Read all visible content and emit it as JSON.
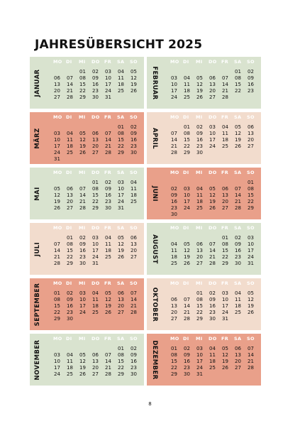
{
  "title": "JAHRESÜBERSICHT 2025",
  "page_number": "8",
  "colors": {
    "green": "#d9e3cf",
    "beige": "#f2dccd",
    "salmon": "#e9a08a"
  },
  "weekdays": [
    "MO",
    "DI",
    "MI",
    "DO",
    "FR",
    "SA",
    "SO"
  ],
  "months": [
    {
      "name": "JANUAR",
      "color": "green",
      "rows": [
        [
          "",
          "",
          "01",
          "02",
          "03",
          "04",
          "05"
        ],
        [
          "06",
          "07",
          "08",
          "09",
          "10",
          "11",
          "12"
        ],
        [
          "13",
          "14",
          "15",
          "16",
          "17",
          "18",
          "19"
        ],
        [
          "20",
          "21",
          "22",
          "23",
          "24",
          "25",
          "26"
        ],
        [
          "27",
          "28",
          "29",
          "30",
          "31",
          "",
          ""
        ]
      ]
    },
    {
      "name": "FEBRUAR",
      "color": "green",
      "rows": [
        [
          "",
          "",
          "",
          "",
          "",
          "01",
          "02"
        ],
        [
          "03",
          "04",
          "05",
          "06",
          "07",
          "08",
          "09"
        ],
        [
          "10",
          "11",
          "12",
          "13",
          "14",
          "15",
          "16"
        ],
        [
          "17",
          "18",
          "19",
          "20",
          "21",
          "22",
          "23"
        ],
        [
          "24",
          "25",
          "26",
          "27",
          "28",
          "",
          ""
        ]
      ]
    },
    {
      "name": "MÄRZ",
      "color": "salmon",
      "rows": [
        [
          "",
          "",
          "",
          "",
          "",
          "01",
          "02"
        ],
        [
          "03",
          "04",
          "05",
          "06",
          "07",
          "08",
          "09"
        ],
        [
          "10",
          "11",
          "12",
          "13",
          "14",
          "15",
          "16"
        ],
        [
          "17",
          "18",
          "19",
          "20",
          "21",
          "22",
          "23"
        ],
        [
          "24",
          "25",
          "26",
          "27",
          "28",
          "29",
          "30"
        ],
        [
          "31",
          "",
          "",
          "",
          "",
          "",
          ""
        ]
      ]
    },
    {
      "name": "APRIL",
      "color": "beige",
      "rows": [
        [
          "",
          "01",
          "02",
          "03",
          "04",
          "05",
          "06"
        ],
        [
          "07",
          "08",
          "09",
          "10",
          "11",
          "12",
          "13"
        ],
        [
          "14",
          "15",
          "16",
          "17",
          "18",
          "19",
          "20"
        ],
        [
          "21",
          "22",
          "23",
          "24",
          "25",
          "26",
          "27"
        ],
        [
          "28",
          "29",
          "30",
          "",
          "",
          "",
          ""
        ]
      ]
    },
    {
      "name": "MAI",
      "color": "green",
      "rows": [
        [
          "",
          "",
          "",
          "01",
          "02",
          "03",
          "04"
        ],
        [
          "05",
          "06",
          "07",
          "08",
          "09",
          "10",
          "11"
        ],
        [
          "12",
          "13",
          "14",
          "15",
          "16",
          "17",
          "18"
        ],
        [
          "19",
          "20",
          "21",
          "22",
          "23",
          "24",
          "25"
        ],
        [
          "26",
          "27",
          "28",
          "29",
          "30",
          "31",
          ""
        ]
      ]
    },
    {
      "name": "JUNI",
      "color": "salmon",
      "rows": [
        [
          "",
          "",
          "",
          "",
          "",
          "",
          "01"
        ],
        [
          "02",
          "03",
          "04",
          "05",
          "06",
          "07",
          "08"
        ],
        [
          "09",
          "10",
          "11",
          "12",
          "13",
          "14",
          "15"
        ],
        [
          "16",
          "17",
          "18",
          "19",
          "20",
          "21",
          "22"
        ],
        [
          "23",
          "24",
          "25",
          "26",
          "27",
          "28",
          "29"
        ],
        [
          "30",
          "",
          "",
          "",
          "",
          "",
          ""
        ]
      ]
    },
    {
      "name": "JULI",
      "color": "beige",
      "rows": [
        [
          "",
          "01",
          "02",
          "03",
          "04",
          "05",
          "06"
        ],
        [
          "07",
          "08",
          "09",
          "10",
          "11",
          "12",
          "13"
        ],
        [
          "14",
          "15",
          "16",
          "17",
          "18",
          "19",
          "20"
        ],
        [
          "21",
          "22",
          "23",
          "24",
          "25",
          "26",
          "27"
        ],
        [
          "28",
          "29",
          "30",
          "31",
          "",
          "",
          ""
        ]
      ]
    },
    {
      "name": "AUGUST",
      "color": "green",
      "rows": [
        [
          "",
          "",
          "",
          "",
          "01",
          "02",
          "03"
        ],
        [
          "04",
          "05",
          "06",
          "07",
          "08",
          "09",
          "10"
        ],
        [
          "11",
          "12",
          "13",
          "14",
          "15",
          "16",
          "17"
        ],
        [
          "18",
          "19",
          "20",
          "21",
          "22",
          "23",
          "24"
        ],
        [
          "25",
          "26",
          "27",
          "28",
          "29",
          "30",
          "31"
        ]
      ]
    },
    {
      "name": "SEPTEMBER",
      "color": "salmon",
      "rows": [
        [
          "01",
          "02",
          "03",
          "04",
          "05",
          "06",
          "07"
        ],
        [
          "08",
          "09",
          "10",
          "11",
          "12",
          "13",
          "14"
        ],
        [
          "15",
          "16",
          "17",
          "18",
          "19",
          "20",
          "21"
        ],
        [
          "22",
          "23",
          "24",
          "25",
          "26",
          "27",
          "28"
        ],
        [
          "29",
          "30",
          "",
          "",
          "",
          "",
          ""
        ]
      ]
    },
    {
      "name": "OKTOBER",
      "color": "beige",
      "rows": [
        [
          "",
          "",
          "01",
          "02",
          "03",
          "04",
          "05"
        ],
        [
          "06",
          "07",
          "08",
          "09",
          "10",
          "11",
          "12"
        ],
        [
          "13",
          "14",
          "15",
          "16",
          "17",
          "18",
          "19"
        ],
        [
          "20",
          "21",
          "22",
          "23",
          "24",
          "25",
          "26"
        ],
        [
          "27",
          "28",
          "29",
          "30",
          "31",
          "",
          ""
        ]
      ]
    },
    {
      "name": "NOVEMBER",
      "color": "green",
      "rows": [
        [
          "",
          "",
          "",
          "",
          "",
          "01",
          "02"
        ],
        [
          "03",
          "04",
          "05",
          "06",
          "07",
          "08",
          "09"
        ],
        [
          "10",
          "11",
          "12",
          "13",
          "14",
          "15",
          "16"
        ],
        [
          "17",
          "18",
          "19",
          "20",
          "21",
          "22",
          "23"
        ],
        [
          "24",
          "25",
          "26",
          "27",
          "28",
          "29",
          "30"
        ]
      ]
    },
    {
      "name": "DEZEMBER",
      "color": "salmon",
      "rows": [
        [
          "01",
          "02",
          "03",
          "04",
          "05",
          "06",
          "07"
        ],
        [
          "08",
          "09",
          "10",
          "11",
          "12",
          "13",
          "14"
        ],
        [
          "15",
          "16",
          "17",
          "18",
          "19",
          "20",
          "21"
        ],
        [
          "22",
          "23",
          "24",
          "25",
          "26",
          "27",
          "28"
        ],
        [
          "29",
          "30",
          "31",
          "",
          "",
          "",
          ""
        ]
      ]
    }
  ]
}
